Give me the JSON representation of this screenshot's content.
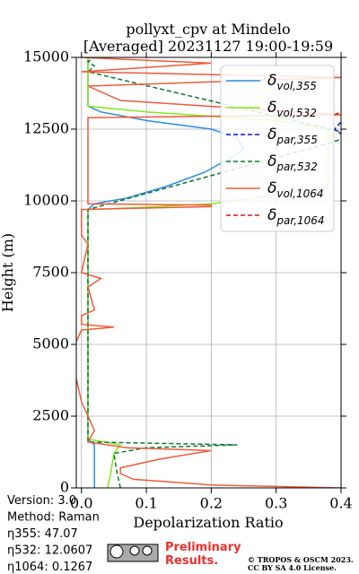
{
  "chart_data": {
    "type": "line",
    "title": "pollyxt_cpv at Mindelo",
    "subtitle": "[Averaged] 20231127 19:00-19:59",
    "xlabel": "Depolarization Ratio",
    "ylabel": "Height (m)",
    "xlim": [
      -0.008,
      0.4
    ],
    "xticks": [
      {
        "value": 0,
        "label": "0.0"
      },
      0.1,
      0.2,
      0.3,
      0.4
    ],
    "ylim": [
      0,
      15000
    ],
    "yticks": [
      0,
      2500,
      5000,
      7500,
      10000,
      12500,
      15000
    ],
    "grid": true,
    "legend": "upper right",
    "series": [
      {
        "name": "δ",
        "name_sub": "vol,355",
        "color": "#2a8ee6",
        "dash": "solid",
        "x": [
          0.02,
          0.02,
          0.02,
          0.02,
          0.01,
          0.01,
          0.01,
          0.02,
          0.07,
          0.13,
          0.19,
          0.23,
          0.25,
          0.24,
          0.2,
          0.1,
          0.03,
          0.01,
          0.01,
          0.01
        ],
        "values": [
          0,
          300,
          1000,
          1500,
          1700,
          2000,
          9700,
          9900,
          10100,
          10500,
          11000,
          11500,
          11800,
          12200,
          12500,
          12800,
          13100,
          13300,
          14000,
          15000
        ]
      },
      {
        "name": "δ",
        "name_sub": "vol,532",
        "color": "#80ea1e",
        "dash": "solid",
        "x": [
          0.04,
          0.045,
          0.05,
          0.06,
          0.01,
          0.01,
          0.07,
          0.2,
          0.3,
          0.38,
          0.38,
          0.3,
          0.1,
          0.01,
          0.01
        ],
        "values": [
          0,
          500,
          1200,
          1500,
          1700,
          9700,
          9750,
          9900,
          10200,
          10500,
          12500,
          12800,
          13100,
          13300,
          15000
        ]
      },
      {
        "name": "δ",
        "name_sub": "par,355",
        "color": "#1010e0",
        "dash": "dashed",
        "x": [
          0.42,
          0.39,
          0.41
        ],
        "values": [
          12000,
          12500,
          13000
        ]
      },
      {
        "name": "δ",
        "name_sub": "par,532",
        "color": "#0a7a30",
        "dash": "dashed",
        "x": [
          0.06,
          0.055,
          0.05,
          0.1,
          0.24,
          0.01,
          0.01,
          0.38,
          0.42,
          0.01,
          0.02,
          0.01,
          0.02
        ],
        "values": [
          0,
          500,
          1200,
          1400,
          1500,
          1600,
          9700,
          12000,
          12300,
          14500,
          14700,
          14850,
          15000
        ]
      },
      {
        "name": "δ",
        "name_sub": "vol,1064",
        "color": "#f05a3a",
        "dash": "solid",
        "x": [
          0.4,
          0.2,
          0.08,
          0.06,
          0.06,
          0.12,
          0.2,
          0.07,
          0.01,
          0.02,
          0.01,
          0.0,
          -0.01,
          -0.01,
          0.0,
          0.05,
          0.0,
          0.0,
          0.02,
          0.01,
          0.03,
          0.0,
          0.01,
          0.0,
          0.0,
          0.2,
          0.2,
          0.01,
          0.01,
          0.4,
          0.06,
          0.01,
          0.4,
          0.0,
          0.2,
          0.0
        ],
        "values": [
          0,
          100,
          300,
          500,
          700,
          1000,
          1300,
          1400,
          1600,
          2000,
          2500,
          3000,
          4000,
          5000,
          5500,
          5600,
          5700,
          6000,
          6200,
          7000,
          7300,
          7500,
          8500,
          8800,
          9700,
          9800,
          9850,
          9900,
          12900,
          13000,
          13500,
          14000,
          14300,
          14500,
          14800,
          15000
        ]
      },
      {
        "name": "δ",
        "name_sub": "par,1064",
        "color": "#d01818",
        "dash": "dashed",
        "x": [
          0.39,
          0.41
        ],
        "values": [
          13000,
          13200
        ]
      }
    ],
    "info": [
      "Version: 3.0",
      "Method: Raman",
      "η355:  47.07",
      "η532: 12.0607",
      "η1064: 0.1267"
    ],
    "notice": [
      "Preliminary",
      "Results."
    ],
    "copyright": [
      "© TROPOS & OSCM 2023.",
      "CC BY SA 4.0 License."
    ]
  }
}
